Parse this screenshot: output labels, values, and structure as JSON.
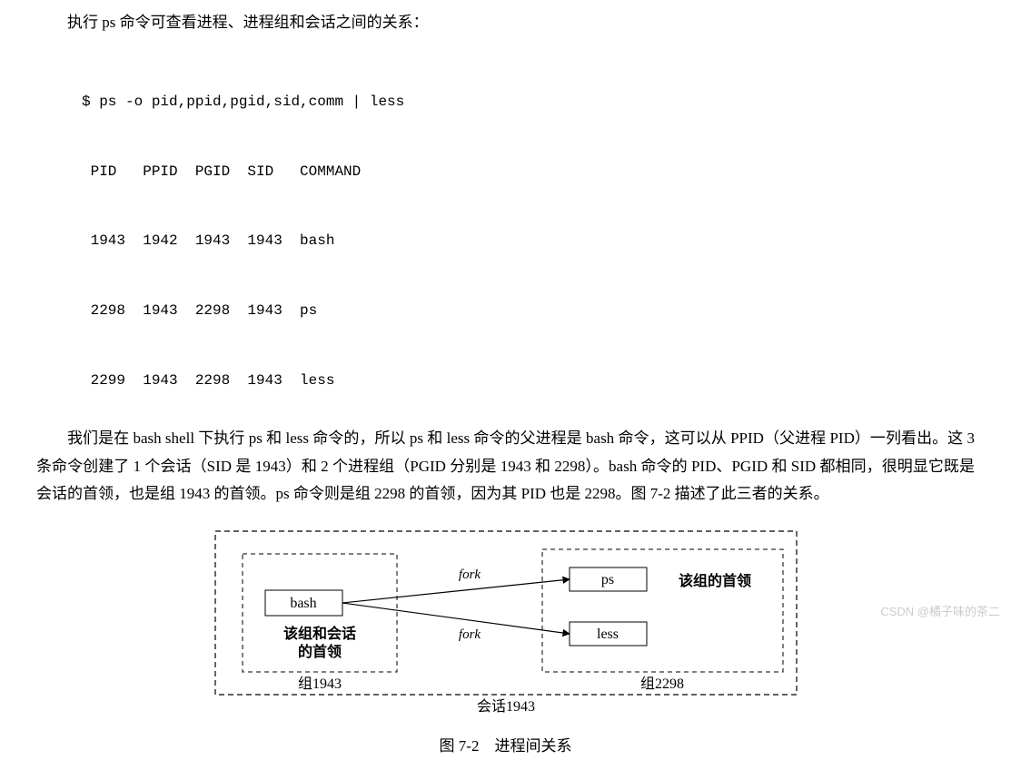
{
  "intro": "执行 ps 命令可查看进程、进程组和会话之间的关系：",
  "code": {
    "cmd": "$ ps -o pid,ppid,pgid,sid,comm | less",
    "header": " PID   PPID  PGID  SID   COMMAND",
    "rows": [
      " 1943  1942  1943  1943  bash",
      " 2298  1943  2298  1943  ps",
      " 2299  1943  2298  1943  less"
    ]
  },
  "para": "我们是在 bash shell 下执行 ps 和 less 命令的，所以 ps 和 less 命令的父进程是 bash 命令，这可以从 PPID（父进程 PID）一列看出。这 3 条命令创建了 1 个会话（SID 是 1943）和 2 个进程组（PGID 分别是 1943 和 2298）。bash 命令的 PID、PGID 和 SID 都相同，很明显它既是会话的首领，也是组 1943 的首领。ps 命令则是组 2298 的首领，因为其 PID 也是 2298。图 7-2 描述了此三者的关系。",
  "diagram": {
    "session_label": "会话1943",
    "group1": {
      "label": "组1943",
      "note": "该组和会话\n的首领",
      "box": "bash"
    },
    "group2": {
      "label": "组2298",
      "note": "该组的首领",
      "box1": "ps",
      "box2": "less"
    },
    "edge_label": "fork",
    "colors": {
      "stroke": "#000000",
      "bg": "#ffffff",
      "text": "#000000"
    },
    "font_family": "SimSun, serif",
    "caption": "图 7-2　进程间关系"
  },
  "watermark": "CSDN @橘子味的茶二"
}
